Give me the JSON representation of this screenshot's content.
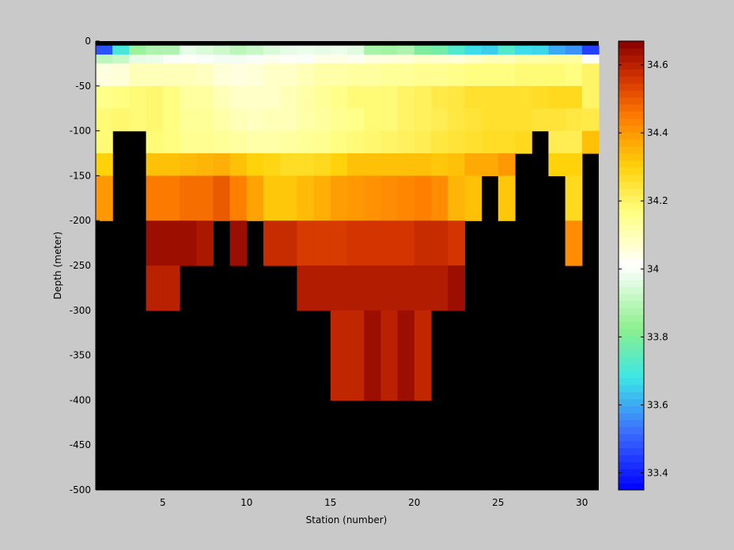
{
  "chart_data": {
    "type": "heatmap",
    "title": "",
    "xlabel": "Station (number)",
    "ylabel": "Depth (meter)",
    "xlim": [
      1,
      31
    ],
    "ylim": [
      -500,
      0
    ],
    "xticks": [
      5,
      10,
      15,
      20,
      25,
      30
    ],
    "yticks": [
      0,
      -50,
      -100,
      -150,
      -200,
      -250,
      -300,
      -350,
      -400,
      -450,
      -500
    ],
    "colorbar": {
      "range": [
        33.35,
        34.67
      ],
      "ticks": [
        33.4,
        33.6,
        33.8,
        34,
        34.2,
        34.4,
        34.6
      ],
      "colormap": "jet-like (blue - cyan - green - white - yellow - orange - red - dark red)"
    },
    "missing_color": "#000000",
    "stations": [
      1,
      2,
      3,
      4,
      5,
      6,
      7,
      8,
      9,
      10,
      11,
      12,
      13,
      14,
      15,
      16,
      17,
      18,
      19,
      20,
      21,
      22,
      23,
      24,
      25,
      26,
      27,
      28,
      29,
      30
    ],
    "depth_levels": [
      {
        "top": 0,
        "bottom": -5,
        "label": "0"
      },
      {
        "top": -5,
        "bottom": -15,
        "label": "-10"
      },
      {
        "top": -15,
        "bottom": -25,
        "label": "-20"
      },
      {
        "top": -25,
        "bottom": -50,
        "label": "-30"
      },
      {
        "top": -50,
        "bottom": -75,
        "label": "-50"
      },
      {
        "top": -75,
        "bottom": -100,
        "label": "-75"
      },
      {
        "top": -100,
        "bottom": -125,
        "label": "-100"
      },
      {
        "top": -125,
        "bottom": -150,
        "label": "-125"
      },
      {
        "top": -150,
        "bottom": -200,
        "label": "-150"
      },
      {
        "top": -200,
        "bottom": -250,
        "label": "-200"
      },
      {
        "top": -250,
        "bottom": -300,
        "label": "-250"
      },
      {
        "top": -300,
        "bottom": -400,
        "label": "-300"
      },
      {
        "top": -400,
        "bottom": -500,
        "label": "-400"
      }
    ],
    "salinity": [
      [
        null,
        null,
        null,
        null,
        null,
        null,
        null,
        null,
        null,
        null,
        null,
        null,
        null,
        null,
        null,
        null,
        null,
        null,
        null,
        null,
        null,
        null,
        null,
        null,
        null,
        null,
        null,
        null,
        null,
        null
      ],
      [
        33.48,
        33.7,
        33.85,
        33.88,
        33.88,
        33.97,
        33.95,
        33.93,
        33.9,
        33.92,
        33.95,
        33.97,
        33.98,
        33.97,
        33.98,
        33.96,
        33.87,
        33.86,
        33.88,
        33.8,
        33.78,
        33.72,
        33.67,
        33.65,
        33.72,
        33.67,
        33.66,
        33.6,
        33.57,
        33.45
      ],
      [
        33.9,
        33.92,
        33.97,
        33.98,
        34.0,
        34.02,
        34.0,
        33.99,
        33.99,
        34.0,
        34.03,
        34.02,
        34.0,
        34.04,
        34.04,
        34.03,
        34.05,
        34.05,
        34.06,
        34.08,
        34.07,
        34.06,
        34.08,
        34.1,
        34.1,
        34.12,
        34.12,
        34.13,
        34.13,
        34.0
      ],
      [
        34.05,
        34.06,
        34.1,
        34.1,
        34.1,
        34.1,
        34.09,
        34.06,
        34.05,
        34.06,
        34.08,
        34.08,
        34.1,
        34.12,
        34.12,
        34.13,
        34.13,
        34.14,
        34.14,
        34.15,
        34.15,
        34.16,
        34.17,
        34.17,
        34.17,
        34.18,
        34.18,
        34.18,
        34.17,
        34.2
      ],
      [
        34.16,
        34.17,
        34.18,
        34.19,
        34.17,
        34.13,
        34.13,
        34.1,
        34.08,
        34.08,
        34.08,
        34.1,
        34.12,
        34.14,
        34.16,
        34.18,
        34.18,
        34.18,
        34.2,
        34.21,
        34.23,
        34.24,
        34.26,
        34.26,
        34.26,
        34.26,
        34.27,
        34.28,
        34.28,
        34.2
      ],
      [
        34.18,
        34.19,
        34.18,
        34.19,
        34.17,
        34.14,
        34.14,
        34.12,
        34.1,
        34.09,
        34.1,
        34.1,
        34.12,
        34.13,
        34.15,
        34.16,
        34.18,
        34.18,
        34.2,
        34.21,
        34.22,
        34.24,
        34.25,
        34.26,
        34.26,
        34.26,
        34.25,
        34.25,
        34.24,
        34.23
      ],
      [
        34.18,
        null,
        null,
        34.18,
        34.17,
        34.15,
        34.15,
        34.14,
        34.13,
        34.12,
        34.12,
        34.13,
        34.14,
        34.15,
        34.17,
        34.18,
        34.19,
        34.2,
        34.21,
        34.22,
        34.24,
        34.25,
        34.26,
        34.27,
        34.27,
        34.28,
        null,
        34.22,
        34.22,
        34.33
      ],
      [
        34.3,
        null,
        null,
        34.33,
        34.33,
        34.34,
        34.35,
        34.36,
        34.33,
        34.3,
        34.29,
        34.27,
        34.27,
        34.28,
        34.3,
        34.33,
        34.33,
        34.33,
        34.33,
        34.33,
        34.32,
        34.33,
        34.37,
        34.37,
        34.4,
        null,
        null,
        34.3,
        34.3,
        null
      ],
      [
        34.4,
        null,
        null,
        34.45,
        34.45,
        34.47,
        34.47,
        34.5,
        34.44,
        34.38,
        34.32,
        34.32,
        34.34,
        34.36,
        34.39,
        34.4,
        34.41,
        34.42,
        34.43,
        34.44,
        34.42,
        34.35,
        34.33,
        null,
        34.32,
        null,
        null,
        null,
        34.28,
        null
      ],
      [
        null,
        null,
        null,
        34.64,
        34.64,
        34.64,
        34.62,
        null,
        34.64,
        null,
        34.58,
        34.58,
        34.55,
        34.55,
        34.55,
        34.56,
        34.56,
        34.56,
        34.56,
        34.58,
        34.58,
        34.56,
        null,
        null,
        null,
        null,
        null,
        null,
        34.42,
        null
      ],
      [
        null,
        null,
        null,
        34.6,
        34.6,
        null,
        null,
        null,
        null,
        null,
        null,
        null,
        34.61,
        34.61,
        34.61,
        34.61,
        34.61,
        34.61,
        34.61,
        34.61,
        34.61,
        34.64,
        null,
        null,
        null,
        null,
        null,
        null,
        null,
        null
      ],
      [
        null,
        null,
        null,
        null,
        null,
        null,
        null,
        null,
        null,
        null,
        null,
        null,
        null,
        null,
        34.59,
        34.59,
        34.64,
        34.6,
        34.64,
        34.59,
        null,
        null,
        null,
        null,
        null,
        null,
        null,
        null,
        null,
        null
      ],
      [
        null,
        null,
        null,
        null,
        null,
        null,
        null,
        null,
        null,
        null,
        null,
        null,
        null,
        null,
        null,
        null,
        null,
        null,
        null,
        null,
        null,
        null,
        null,
        null,
        null,
        null,
        null,
        null,
        null,
        null
      ]
    ]
  }
}
